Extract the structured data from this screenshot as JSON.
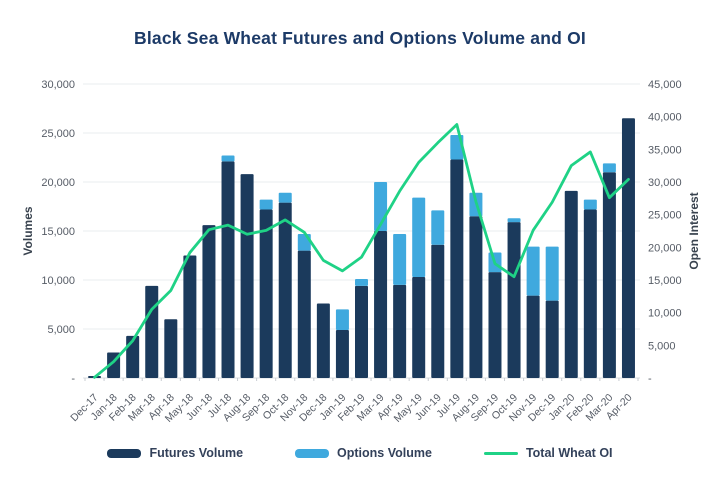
{
  "header": {
    "title": "Black Sea Wheat Futures and Options Volume and OI"
  },
  "chart_data": {
    "type": "combo-stacked-bar-line",
    "categories": [
      "Dec-17",
      "Jan-18",
      "Feb-18",
      "Mar-18",
      "Apr-18",
      "May-18",
      "Jun-18",
      "Jul-18",
      "Aug-18",
      "Sep-18",
      "Oct-18",
      "Nov-18",
      "Dec-18",
      "Jan-19",
      "Feb-19",
      "Mar-19",
      "Apr-19",
      "May-19",
      "Jun-19",
      "Jul-19",
      "Aug-19",
      "Sep-19",
      "Oct-19",
      "Nov-19",
      "Dec-19",
      "Jan-20",
      "Feb-20",
      "Mar-20",
      "Apr-20"
    ],
    "series": [
      {
        "name": "Futures Volume",
        "type": "bar",
        "axis": "left",
        "color": "#1b3a5c",
        "values": [
          200,
          2600,
          4300,
          9400,
          6000,
          12500,
          15600,
          22100,
          20800,
          17200,
          17900,
          13000,
          7600,
          4900,
          9400,
          15000,
          9500,
          10300,
          13600,
          22300,
          16500,
          10800,
          15900,
          8400,
          7900,
          19100,
          17200,
          21000,
          26500
        ]
      },
      {
        "name": "Options Volume",
        "type": "bar",
        "axis": "left",
        "color": "#3fa9de",
        "values": [
          0,
          0,
          0,
          0,
          0,
          0,
          0,
          600,
          0,
          1000,
          1000,
          1700,
          0,
          2100,
          700,
          5000,
          5200,
          8100,
          3500,
          2500,
          2400,
          2000,
          400,
          5000,
          5500,
          0,
          1000,
          900,
          0
        ]
      },
      {
        "name": "Total Wheat OI",
        "type": "line",
        "axis": "right",
        "color": "#1fd286",
        "values": [
          100,
          2500,
          5700,
          10500,
          13400,
          19200,
          22700,
          23400,
          22000,
          22600,
          24200,
          22300,
          18000,
          16400,
          18500,
          23500,
          28600,
          33000,
          36000,
          38800,
          27000,
          17500,
          15500,
          22600,
          26900,
          32500,
          34600,
          27600,
          30400
        ]
      }
    ],
    "left_axis": {
      "label": "Volumes",
      "min": 0,
      "max": 30000,
      "tick_step": 5000,
      "tick_labels": [
        "-",
        "5,000",
        "10,000",
        "15,000",
        "20,000",
        "25,000",
        "30,000"
      ]
    },
    "right_axis": {
      "label": "Open Interest",
      "min": 0,
      "max": 45000,
      "tick_step": 5000,
      "tick_labels": [
        "-",
        "5,000",
        "10,000",
        "15,000",
        "20,000",
        "25,000",
        "30,000",
        "35,000",
        "40,000",
        "45,000"
      ]
    },
    "grid": true,
    "legend_position": "bottom",
    "colors": {
      "title": "#1c3a67",
      "grid": "#eaecef",
      "baseline": "#d9dce0",
      "tick_text": "#565c66"
    }
  }
}
